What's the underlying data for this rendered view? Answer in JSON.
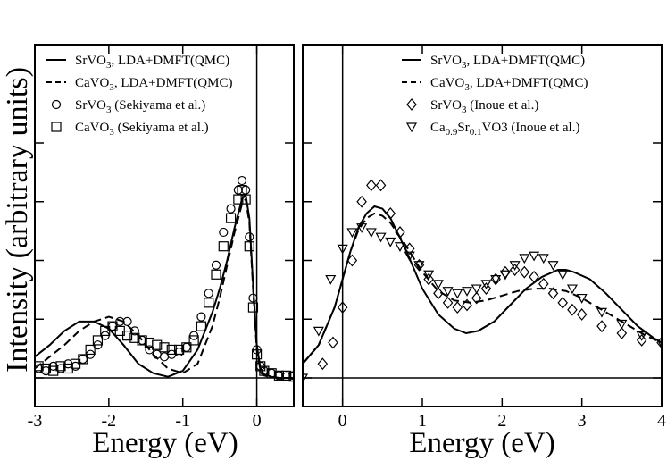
{
  "figure": {
    "ylabel": "Intensity (arbitrary units)"
  },
  "chart_data": [
    {
      "type": "line",
      "panel": "left",
      "xlabel": "Energy (eV)",
      "ylabel": "Intensity (arbitrary units)",
      "xlim": [
        -3,
        0.5
      ],
      "ylim": [
        0,
        100
      ],
      "xticks": [
        -3,
        -2,
        -1,
        0
      ],
      "xtick_labels": [
        "-3",
        "-2",
        "-1",
        "0"
      ],
      "legend_position": "top-left",
      "grid": false,
      "series": [
        {
          "name": "SrVO3, LDA+DMFT(QMC)",
          "label_main": "SrVO",
          "label_sub": "3",
          "label_tail": ", LDA+DMFT(QMC)",
          "style": "solid",
          "x": [
            -3.0,
            -2.8,
            -2.6,
            -2.4,
            -2.2,
            -2.0,
            -1.8,
            -1.6,
            -1.4,
            -1.2,
            -1.0,
            -0.8,
            -0.6,
            -0.5,
            -0.4,
            -0.3,
            -0.2,
            -0.15,
            -0.1,
            -0.05,
            0.0,
            0.05,
            0.1,
            0.2,
            0.3,
            0.4,
            0.5
          ],
          "y": [
            9,
            14,
            20,
            24,
            24,
            21,
            14,
            6,
            2,
            0.5,
            3,
            12,
            28,
            38,
            50,
            64,
            76,
            78,
            68,
            40,
            14,
            4,
            1.5,
            0.5,
            0,
            0,
            0
          ]
        },
        {
          "name": "CaVO3, LDA+DMFT(QMC)",
          "label_main": "CaVO",
          "label_sub": "3",
          "label_tail": ", LDA+DMFT(QMC)",
          "style": "dashed",
          "x": [
            -3.0,
            -2.8,
            -2.6,
            -2.4,
            -2.2,
            -2.0,
            -1.8,
            -1.6,
            -1.4,
            -1.2,
            -1.0,
            -0.8,
            -0.6,
            -0.5,
            -0.4,
            -0.3,
            -0.2,
            -0.15,
            -0.1,
            -0.05,
            0.0,
            0.05,
            0.1,
            0.2,
            0.3,
            0.4,
            0.5
          ],
          "y": [
            4,
            9,
            14,
            20,
            24,
            26,
            24,
            18,
            10,
            4,
            2,
            6,
            22,
            34,
            48,
            62,
            74,
            76,
            66,
            38,
            12,
            3,
            1,
            0.3,
            0,
            0,
            0
          ]
        },
        {
          "name": "SrVO3 (Sekiyama et al.)",
          "label_main": "SrVO",
          "label_sub": "3",
          "label_tail": " (Sekiyama et al.)",
          "style": "markers",
          "marker": "circle",
          "x": [
            -2.95,
            -2.85,
            -2.75,
            -2.65,
            -2.55,
            -2.45,
            -2.35,
            -2.25,
            -2.15,
            -2.05,
            -1.95,
            -1.85,
            -1.75,
            -1.65,
            -1.55,
            -1.45,
            -1.35,
            -1.25,
            -1.15,
            -1.05,
            -0.95,
            -0.85,
            -0.75,
            -0.65,
            -0.55,
            -0.45,
            -0.35,
            -0.25,
            -0.2,
            -0.15,
            -0.1,
            -0.05,
            0.0,
            0.05,
            0.1,
            0.2,
            0.3,
            0.4,
            0.5
          ],
          "y": [
            4,
            3,
            5,
            4,
            6,
            5,
            8,
            10,
            14,
            18,
            22,
            24,
            24,
            20,
            16,
            12,
            10,
            9,
            10,
            11,
            13,
            18,
            26,
            36,
            48,
            62,
            72,
            80,
            84,
            80,
            60,
            34,
            12,
            5,
            3,
            2,
            1,
            0.5,
            1
          ]
        },
        {
          "name": "CaVO3 (Sekiyama et al.)",
          "label_main": "CaVO",
          "label_sub": "3",
          "label_tail": " (Sekiyama et al.)",
          "style": "markers",
          "marker": "square",
          "x": [
            -2.95,
            -2.85,
            -2.75,
            -2.65,
            -2.55,
            -2.45,
            -2.35,
            -2.25,
            -2.15,
            -2.05,
            -1.95,
            -1.85,
            -1.75,
            -1.65,
            -1.55,
            -1.45,
            -1.35,
            -1.25,
            -1.15,
            -1.05,
            -0.95,
            -0.85,
            -0.75,
            -0.65,
            -0.55,
            -0.45,
            -0.35,
            -0.25,
            -0.2,
            -0.15,
            -0.1,
            -0.05,
            0.0,
            0.05,
            0.1,
            0.2,
            0.3,
            0.4,
            0.5
          ],
          "y": [
            5,
            4,
            3,
            5,
            4,
            6,
            8,
            12,
            16,
            20,
            22,
            20,
            18,
            17,
            16,
            15,
            14,
            13,
            12,
            12,
            13,
            16,
            22,
            32,
            44,
            56,
            68,
            76,
            80,
            76,
            56,
            30,
            10,
            5,
            3,
            2,
            1,
            1,
            0.5
          ]
        }
      ]
    },
    {
      "type": "line",
      "panel": "right",
      "xlabel": "Energy (eV)",
      "xlim": [
        -0.5,
        4
      ],
      "ylim": [
        0,
        100
      ],
      "xticks": [
        0,
        1,
        2,
        3,
        4
      ],
      "xtick_labels": [
        "0",
        "1",
        "2",
        "3",
        "4"
      ],
      "legend_position": "top-right",
      "grid": false,
      "series": [
        {
          "name": "SrVO3, LDA+DMFT(QMC)",
          "label_main": "SrVO",
          "label_sub": "3",
          "label_tail": ", LDA+DMFT(QMC)",
          "style": "solid",
          "x": [
            -0.5,
            -0.3,
            -0.1,
            0.0,
            0.1,
            0.2,
            0.3,
            0.4,
            0.5,
            0.6,
            0.8,
            1.0,
            1.2,
            1.4,
            1.55,
            1.7,
            1.9,
            2.1,
            2.3,
            2.5,
            2.7,
            2.8,
            2.9,
            3.1,
            3.3,
            3.5,
            3.7,
            3.9,
            4.0
          ],
          "y": [
            6,
            14,
            30,
            42,
            54,
            64,
            70,
            73,
            72,
            68,
            54,
            38,
            27,
            21,
            19,
            20,
            24,
            31,
            38,
            43,
            46,
            46,
            45,
            42,
            36,
            29,
            22,
            17,
            15
          ]
        },
        {
          "name": "CaVO3, LDA+DMFT(QMC)",
          "label_main": "CaVO",
          "label_sub": "3",
          "label_tail": ", LDA+DMFT(QMC)",
          "style": "dashed",
          "x": [
            -0.5,
            -0.3,
            -0.1,
            0.0,
            0.1,
            0.2,
            0.3,
            0.4,
            0.5,
            0.6,
            0.8,
            1.0,
            1.2,
            1.4,
            1.6,
            1.8,
            2.0,
            2.2,
            2.4,
            2.6,
            2.8,
            3.0,
            3.2,
            3.4,
            3.6,
            3.8,
            4.0
          ],
          "y": [
            6,
            14,
            30,
            42,
            54,
            63,
            68,
            70,
            69,
            66,
            56,
            45,
            37,
            33,
            32,
            33,
            35,
            37,
            38,
            38,
            37,
            34,
            30,
            26,
            22,
            18,
            15
          ]
        },
        {
          "name": "SrVO3 (Inoue et al.)",
          "label_main": "SrVO",
          "label_sub": "3",
          "label_tail": " (Inoue et al.)",
          "style": "markers",
          "marker": "diamond",
          "x": [
            -0.25,
            -0.12,
            0.0,
            0.12,
            0.24,
            0.36,
            0.48,
            0.6,
            0.72,
            0.84,
            0.96,
            1.08,
            1.2,
            1.32,
            1.44,
            1.56,
            1.68,
            1.8,
            1.92,
            2.04,
            2.16,
            2.28,
            2.4,
            2.52,
            2.64,
            2.76,
            2.88,
            3.0,
            3.25,
            3.5,
            3.75,
            4.0
          ],
          "y": [
            6,
            15,
            30,
            50,
            75,
            82,
            82,
            70,
            62,
            55,
            48,
            42,
            36,
            32,
            30,
            31,
            34,
            38,
            42,
            45,
            46,
            45,
            43,
            40,
            36,
            32,
            29,
            27,
            22,
            19,
            16,
            15
          ]
        },
        {
          "name": "Ca0.9Sr0.1VO3 (Inoue et al.)",
          "label_main": "Ca",
          "label_sub": "0.9",
          "label_main2": "Sr",
          "label_sub2": "0.1",
          "label_tail": "VO3 (Inoue et al.)",
          "style": "markers",
          "marker": "triangle-down",
          "x": [
            -0.5,
            -0.3,
            -0.15,
            0.0,
            0.12,
            0.24,
            0.36,
            0.48,
            0.6,
            0.72,
            0.84,
            0.96,
            1.08,
            1.2,
            1.32,
            1.44,
            1.56,
            1.68,
            1.8,
            1.92,
            2.04,
            2.16,
            2.28,
            2.4,
            2.52,
            2.64,
            2.76,
            2.88,
            3.0,
            3.25,
            3.5,
            3.75,
            4.0
          ],
          "y": [
            0,
            20,
            42,
            55,
            62,
            64,
            62,
            60,
            58,
            56,
            52,
            48,
            44,
            40,
            37,
            36,
            37,
            38,
            40,
            42,
            44,
            48,
            51,
            52,
            51,
            48,
            44,
            38,
            34,
            28,
            23,
            18,
            15
          ]
        }
      ]
    }
  ]
}
